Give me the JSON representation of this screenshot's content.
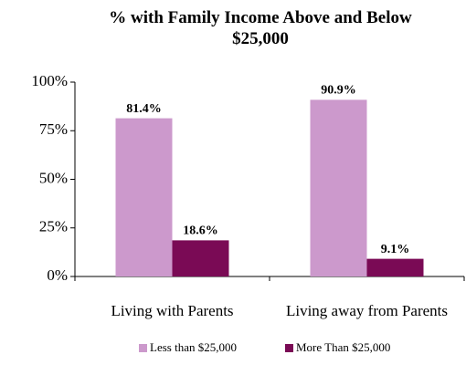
{
  "chart_data": {
    "type": "bar",
    "title": "% with Family Income Above and Below $25,000",
    "categories": [
      "Living with Parents",
      "Living away from Parents"
    ],
    "series": [
      {
        "name": "Less than $25,000",
        "color": "#cc99cc",
        "values": [
          81.4,
          90.9
        ],
        "value_labels": [
          "81.4%",
          "90.9%"
        ]
      },
      {
        "name": "More Than $25,000",
        "color": "#7a0a55",
        "values": [
          18.6,
          9.1
        ],
        "value_labels": [
          "18.6%",
          "9.1%"
        ]
      }
    ],
    "ylim": [
      0,
      100
    ],
    "yticks": [
      {
        "value": 0,
        "label": "0%"
      },
      {
        "value": 25,
        "label": "25%"
      },
      {
        "value": 50,
        "label": "50%"
      },
      {
        "value": 75,
        "label": "75%"
      },
      {
        "value": 100,
        "label": "100%"
      }
    ],
    "legend": "bottom"
  }
}
